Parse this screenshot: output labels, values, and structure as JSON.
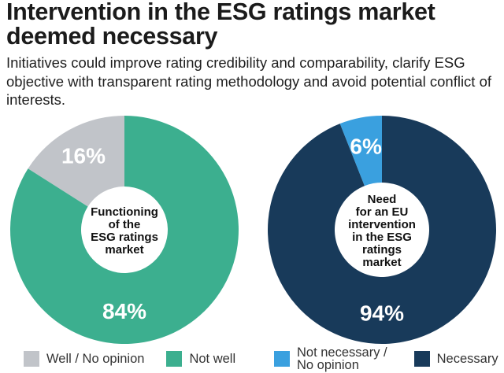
{
  "header": {
    "title": "Intervention in the ESG ratings market deemed necessary",
    "subtitle": "Initiatives could improve rating credibility and comparability, clarify ESG objective with transparent rating methodology and avoid potential conflict of interests."
  },
  "chart_data": [
    {
      "type": "pie",
      "center_label": [
        "Functioning",
        "of the",
        "ESG ratings",
        "market"
      ],
      "slices": [
        {
          "label": "Well / No opinion",
          "value": 16,
          "display": "16%",
          "color": "#c1c4c9"
        },
        {
          "label": "Not well",
          "value": 84,
          "display": "84%",
          "color": "#3caf8f"
        }
      ]
    },
    {
      "type": "pie",
      "center_label": [
        "Need",
        "for an EU",
        "intervention",
        "in the ESG",
        "ratings",
        "market"
      ],
      "slices": [
        {
          "label": "Not necessary / No opinion",
          "value": 6,
          "display": "6%",
          "color": "#3aa0df"
        },
        {
          "label": "Necessary",
          "value": 94,
          "display": "94%",
          "color": "#183a5a"
        }
      ]
    }
  ],
  "legend": {
    "left": [
      {
        "label": "Well / No opinion",
        "color": "#c1c4c9"
      },
      {
        "label": "Not well",
        "color": "#3caf8f"
      }
    ],
    "right": [
      {
        "label": "Not necessary / No opinion",
        "line1": "Not necessary /",
        "line2": "No opinion",
        "color": "#3aa0df"
      },
      {
        "label": "Necessary",
        "color": "#183a5a"
      }
    ]
  }
}
